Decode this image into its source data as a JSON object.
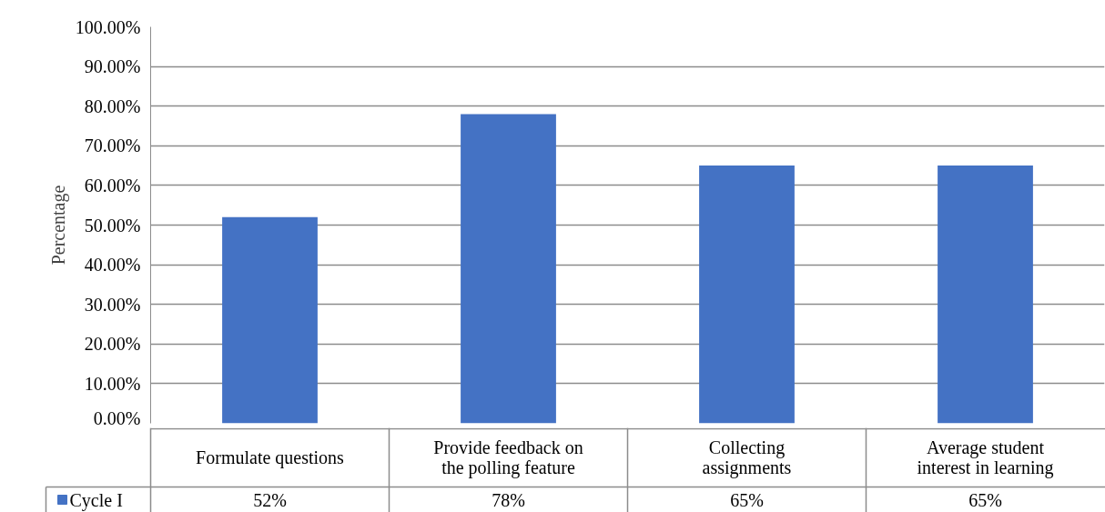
{
  "chart_data": {
    "type": "bar",
    "ylabel": "Percentage",
    "categories": [
      "Formulate questions",
      "Provide feedback on the polling feature",
      "Collecting assignments",
      "Average student interest in learning"
    ],
    "series": [
      {
        "name": "Cycle I",
        "color": "#4472c4",
        "values": [
          52,
          78,
          65,
          65
        ],
        "value_labels": [
          "52%",
          "78%",
          "65%",
          "65%"
        ]
      }
    ],
    "ylim": [
      0,
      100
    ],
    "yticks": [
      {
        "value": 0,
        "label": "0.00%"
      },
      {
        "value": 10,
        "label": "10.00%"
      },
      {
        "value": 20,
        "label": "20.00%"
      },
      {
        "value": 30,
        "label": "30.00%"
      },
      {
        "value": 40,
        "label": "40.00%"
      },
      {
        "value": 50,
        "label": "50.00%"
      },
      {
        "value": 60,
        "label": "60.00%"
      },
      {
        "value": 70,
        "label": "70.00%"
      },
      {
        "value": 80,
        "label": "80.00%"
      },
      {
        "value": 90,
        "label": "90.00%"
      },
      {
        "value": 100,
        "label": "100.00%"
      }
    ],
    "grid": "y",
    "legend": "bottom"
  }
}
